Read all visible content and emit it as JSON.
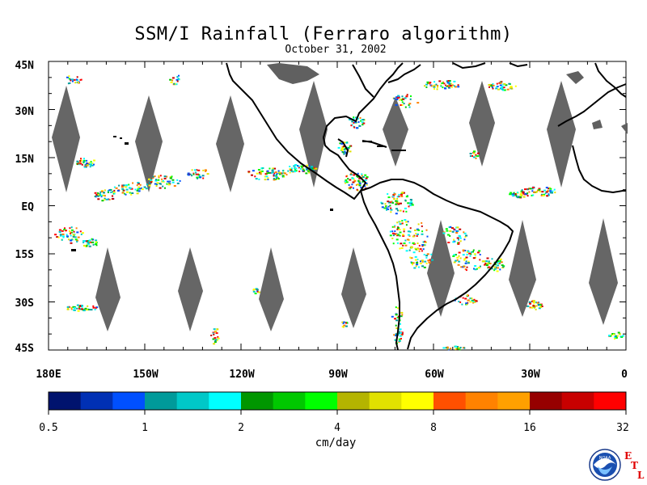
{
  "title": "SSM/I Rainfall (Ferraro algorithm)",
  "subtitle": "October 31, 2002",
  "lat_labels": [
    "45N",
    "30N",
    "15N",
    "EQ",
    "15S",
    "30S",
    "45S"
  ],
  "lon_labels": [
    "180E",
    "150W",
    "120W",
    "90W",
    "60W",
    "30W",
    "0"
  ],
  "colorbar": {
    "ticks": [
      "0.5",
      "1",
      "2",
      "4",
      "8",
      "16",
      "32"
    ],
    "units": "cm/day",
    "colors": [
      "#00136e",
      "#0030b4",
      "#0050ff",
      "#009a9a",
      "#00c8c8",
      "#00ffff",
      "#009600",
      "#00c800",
      "#00ff00",
      "#b4b400",
      "#e1e100",
      "#ffff00",
      "#ff5000",
      "#ff8200",
      "#ffa000",
      "#960000",
      "#c80000",
      "#ff0000"
    ]
  },
  "logo": {
    "text": "NOAA",
    "letters": [
      "E",
      "T",
      "L"
    ]
  },
  "colors": {
    "land": "#606060",
    "coast": "#000000",
    "gap": "#646464"
  }
}
